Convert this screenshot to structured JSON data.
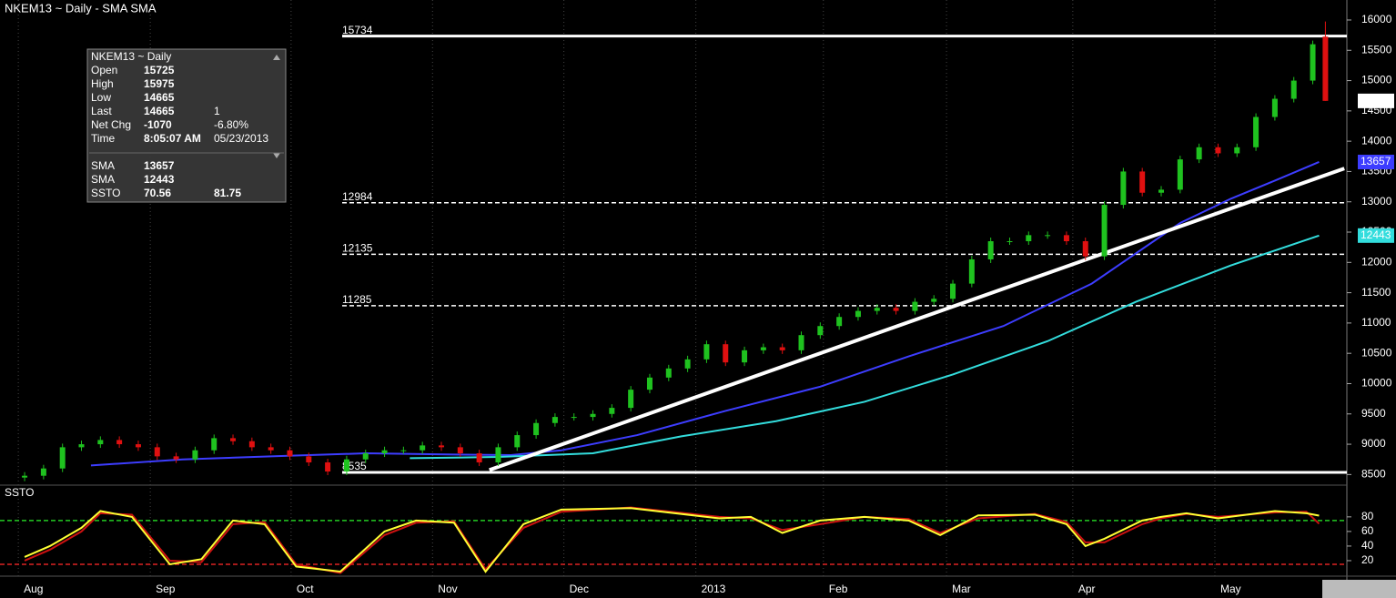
{
  "chart_data": [
    {
      "type": "candlestick",
      "title": "NKEM13 ~ Daily  -  SMA SMA",
      "x": [
        0,
        3,
        6,
        9,
        12,
        15,
        18,
        21,
        24,
        27,
        30,
        33,
        36,
        39,
        42,
        45,
        48,
        51,
        54,
        57,
        60,
        63,
        66,
        69,
        72,
        75,
        78,
        81,
        84,
        87,
        90,
        93,
        96,
        99,
        102,
        105,
        108,
        111,
        114,
        117,
        120,
        123,
        126,
        129,
        132,
        135,
        138,
        141,
        144,
        147,
        150,
        153,
        156,
        159,
        162,
        165,
        168,
        171,
        174,
        177,
        180,
        183,
        186,
        189,
        192,
        195,
        198,
        201,
        204,
        206
      ],
      "open": [
        8450,
        8480,
        8600,
        8950,
        9000,
        9070,
        9000,
        8950,
        8800,
        8750,
        8900,
        9100,
        9050,
        8950,
        8900,
        8800,
        8700,
        8550,
        8750,
        8850,
        8900,
        8900,
        8980,
        8950,
        8850,
        8700,
        8950,
        9150,
        9350,
        9450,
        9450,
        9500,
        9600,
        9900,
        10100,
        10250,
        10400,
        10650,
        10350,
        10550,
        10600,
        10550,
        10800,
        10950,
        11100,
        11200,
        11250,
        11200,
        11350,
        11400,
        11650,
        12050,
        12350,
        12350,
        12450,
        12450,
        12350,
        12100,
        12950,
        13500,
        13150,
        13200,
        13700,
        13900,
        13800,
        13900,
        14400,
        14700,
        15000,
        15725
      ],
      "high": [
        8540,
        8660,
        9010,
        9060,
        9130,
        9130,
        9060,
        9010,
        8860,
        8960,
        9160,
        9160,
        9110,
        9010,
        8960,
        8860,
        8760,
        8810,
        8910,
        8960,
        8960,
        9040,
        9040,
        9010,
        8910,
        9010,
        9210,
        9410,
        9510,
        9510,
        9560,
        9660,
        9960,
        10160,
        10310,
        10460,
        10710,
        10710,
        10610,
        10660,
        10660,
        10860,
        11010,
        11160,
        11260,
        11310,
        11310,
        11410,
        11460,
        11710,
        12110,
        12410,
        12410,
        12510,
        12510,
        12510,
        12410,
        13010,
        13560,
        13560,
        13260,
        13760,
        13960,
        13960,
        13960,
        14460,
        14760,
        15060,
        15660,
        15975
      ],
      "low": [
        8390,
        8420,
        8540,
        8890,
        8940,
        8940,
        8890,
        8740,
        8690,
        8690,
        8840,
        8990,
        8890,
        8840,
        8740,
        8640,
        8490,
        8490,
        8690,
        8790,
        8840,
        8840,
        8890,
        8790,
        8640,
        8640,
        8890,
        9090,
        9290,
        9390,
        9390,
        9440,
        9540,
        9840,
        10040,
        10190,
        10340,
        10290,
        10290,
        10490,
        10490,
        10490,
        10740,
        10890,
        11040,
        11140,
        11140,
        11140,
        11290,
        11340,
        11590,
        11990,
        12290,
        12290,
        12390,
        12290,
        12040,
        12040,
        12890,
        13090,
        13090,
        13140,
        13640,
        13740,
        13740,
        13840,
        14340,
        14640,
        14940,
        14665
      ],
      "close": [
        8480,
        8600,
        8950,
        9000,
        9070,
        9000,
        8950,
        8800,
        8750,
        8900,
        9100,
        9050,
        8950,
        8900,
        8800,
        8700,
        8550,
        8750,
        8850,
        8900,
        8900,
        8980,
        8950,
        8850,
        8700,
        8950,
        9150,
        9350,
        9450,
        9450,
        9500,
        9600,
        9900,
        10100,
        10250,
        10400,
        10650,
        10350,
        10550,
        10600,
        10550,
        10800,
        10950,
        11100,
        11200,
        11250,
        11200,
        11350,
        11400,
        11650,
        12050,
        12350,
        12350,
        12450,
        12450,
        12350,
        12100,
        12950,
        13500,
        13150,
        13200,
        13700,
        13900,
        13800,
        13900,
        14400,
        14700,
        15000,
        15600,
        14665
      ],
      "up_color": "#1fc21f",
      "down_color": "#e01010",
      "series": [
        {
          "name": "SMA",
          "color": "#3d3dff",
          "x": [
            10.5,
            25,
            39,
            54,
            68,
            77,
            85,
            97,
            111,
            126,
            140,
            155,
            169,
            176,
            183,
            191,
            198,
            205
          ],
          "values": [
            8650,
            8750,
            8800,
            8850,
            8830,
            8820,
            8900,
            9150,
            9550,
            9950,
            10450,
            10950,
            11650,
            12150,
            12650,
            13050,
            13350,
            13657
          ]
        },
        {
          "name": "SMA",
          "color": "#33dddd",
          "x": [
            61,
            75,
            90,
            104,
            119,
            133,
            147,
            162,
            176,
            191,
            205
          ],
          "values": [
            8770,
            8790,
            8850,
            9130,
            9380,
            9700,
            10150,
            10700,
            11350,
            11950,
            12443
          ]
        }
      ],
      "levels": [
        15734,
        12984,
        12135,
        11285,
        8535
      ],
      "level_styles": [
        "solid",
        "dashed",
        "dashed",
        "dashed",
        "solid"
      ],
      "trendline": {
        "x": [
          73.6,
          209
        ],
        "values": [
          8575,
          13550
        ]
      },
      "xlim": [
        -3.9,
        209.4
      ],
      "ylim": [
        8340,
        16330
      ],
      "yticks": [
        16000,
        15500,
        15000,
        14500,
        14000,
        13500,
        13000,
        12500,
        12000,
        11500,
        11000,
        10500,
        10000,
        9500,
        9000,
        8500
      ]
    },
    {
      "type": "line",
      "title": "SSTO",
      "x": [
        0,
        4,
        9,
        12,
        17,
        23,
        28,
        33,
        38,
        43,
        50,
        57,
        62,
        68,
        73,
        79,
        85,
        96,
        110,
        115,
        120,
        126,
        133,
        140,
        145,
        151,
        160,
        165,
        168,
        171,
        177,
        180,
        184,
        189,
        198,
        203,
        205
      ],
      "series": [
        {
          "name": "SSTO",
          "color": "#cc1111",
          "values": [
            20,
            35,
            60,
            85,
            83,
            20,
            18,
            70,
            73,
            15,
            3,
            55,
            72,
            74,
            8,
            65,
            87,
            93,
            80,
            78,
            62,
            70,
            80,
            77,
            58,
            78,
            84,
            73,
            45,
            45,
            70,
            78,
            84,
            80,
            86,
            87,
            70.56
          ]
        },
        {
          "name": "SSTO",
          "color": "#ffff33",
          "values": [
            25,
            40,
            65,
            88,
            80,
            15,
            22,
            75,
            70,
            12,
            5,
            60,
            75,
            72,
            5,
            70,
            90,
            92,
            78,
            80,
            58,
            75,
            80,
            75,
            55,
            82,
            83,
            70,
            40,
            50,
            75,
            80,
            85,
            78,
            88,
            85,
            81.75
          ]
        }
      ],
      "levels": [
        75,
        15
      ],
      "level_colors": [
        "#22cc22",
        "#dd2222"
      ],
      "xlim": [
        -3.9,
        209.4
      ],
      "ylim": [
        0,
        121
      ],
      "yticks": [
        80,
        60,
        40,
        20
      ],
      "xticks": [
        {
          "value": -1,
          "label": "Aug"
        },
        {
          "value": 19.9,
          "label": "Sep"
        },
        {
          "value": 42.2,
          "label": "Oct"
        },
        {
          "value": 64.6,
          "label": "Nov"
        },
        {
          "value": 85.4,
          "label": "Dec"
        },
        {
          "value": 106.3,
          "label": "2013"
        },
        {
          "value": 126.5,
          "label": "Feb"
        },
        {
          "value": 146,
          "label": "Mar"
        },
        {
          "value": 166,
          "label": "Apr"
        },
        {
          "value": 188.5,
          "label": "May"
        }
      ]
    }
  ],
  "info_box": {
    "title": "NKEM13 ~ Daily",
    "labels": [
      "Open",
      "High",
      "Low",
      "Last",
      "Net Chg",
      "Time"
    ],
    "last_size": 1,
    "net_change": -1070,
    "net_change_pct": "-6.80%",
    "time": "8:05:07 AM",
    "date": "05/23/2013"
  }
}
